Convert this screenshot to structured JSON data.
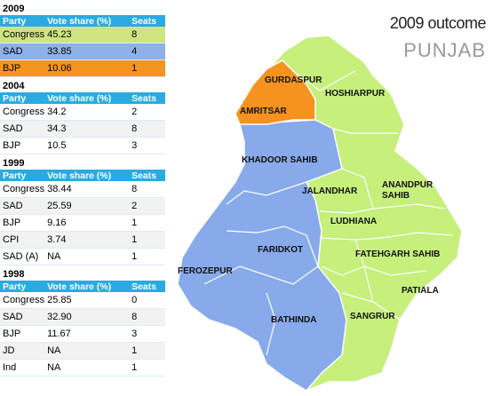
{
  "header": {
    "title": "2009 outcome",
    "subtitle": "PUNJAB"
  },
  "tables": [
    {
      "year": "2009",
      "columns": [
        "Party",
        "Vote share (%)",
        "Seats"
      ],
      "rows": [
        [
          "Congress",
          "45.23",
          "8"
        ],
        [
          "SAD",
          "33.85",
          "4"
        ],
        [
          "BJP",
          "10.06",
          "1"
        ]
      ],
      "row_colors": [
        "#cde57f",
        "#8fb1e8",
        "#f5941e"
      ]
    },
    {
      "year": "2004",
      "columns": [
        "Party",
        "Vote share (%)",
        "Seats"
      ],
      "rows": [
        [
          "Congress",
          "34.2",
          "2"
        ],
        [
          "SAD",
          "34.3",
          "8"
        ],
        [
          "BJP",
          "10.5",
          "3"
        ]
      ]
    },
    {
      "year": "1999",
      "columns": [
        "Party",
        "Vote share (%)",
        "Seats"
      ],
      "rows": [
        [
          "Congress",
          "38.44",
          "8"
        ],
        [
          "SAD",
          "25.59",
          "2"
        ],
        [
          "BJP",
          "9.16",
          "1"
        ],
        [
          "CPI",
          "3.74",
          "1"
        ],
        [
          "SAD (A)",
          "NA",
          "1"
        ]
      ]
    },
    {
      "year": "1998",
      "columns": [
        "Party",
        "Vote share (%)",
        "Seats"
      ],
      "rows": [
        [
          "Congress",
          "25.85",
          "0"
        ],
        [
          "SAD",
          "32.90",
          "8"
        ],
        [
          "BJP",
          "11.67",
          "3"
        ],
        [
          "JD",
          "NA",
          "1"
        ],
        [
          "Ind",
          "NA",
          "1"
        ]
      ]
    }
  ],
  "map": {
    "regions": [
      {
        "label": "GURDASPUR"
      },
      {
        "label": "AMRITSAR"
      },
      {
        "label": "HOSHIARPUR"
      },
      {
        "label": "KHADOOR SAHIB"
      },
      {
        "label": "JALANDHAR"
      },
      {
        "label": "ANANDPUR SAHIB"
      },
      {
        "label": "LUDHIANA"
      },
      {
        "label": "FARIDKOT"
      },
      {
        "label": "FATEHGARH SAHIB"
      },
      {
        "label": "FEROZEPUR"
      },
      {
        "label": "PATIALA"
      },
      {
        "label": "SANGRUR"
      },
      {
        "label": "BATHINDA"
      }
    ]
  }
}
